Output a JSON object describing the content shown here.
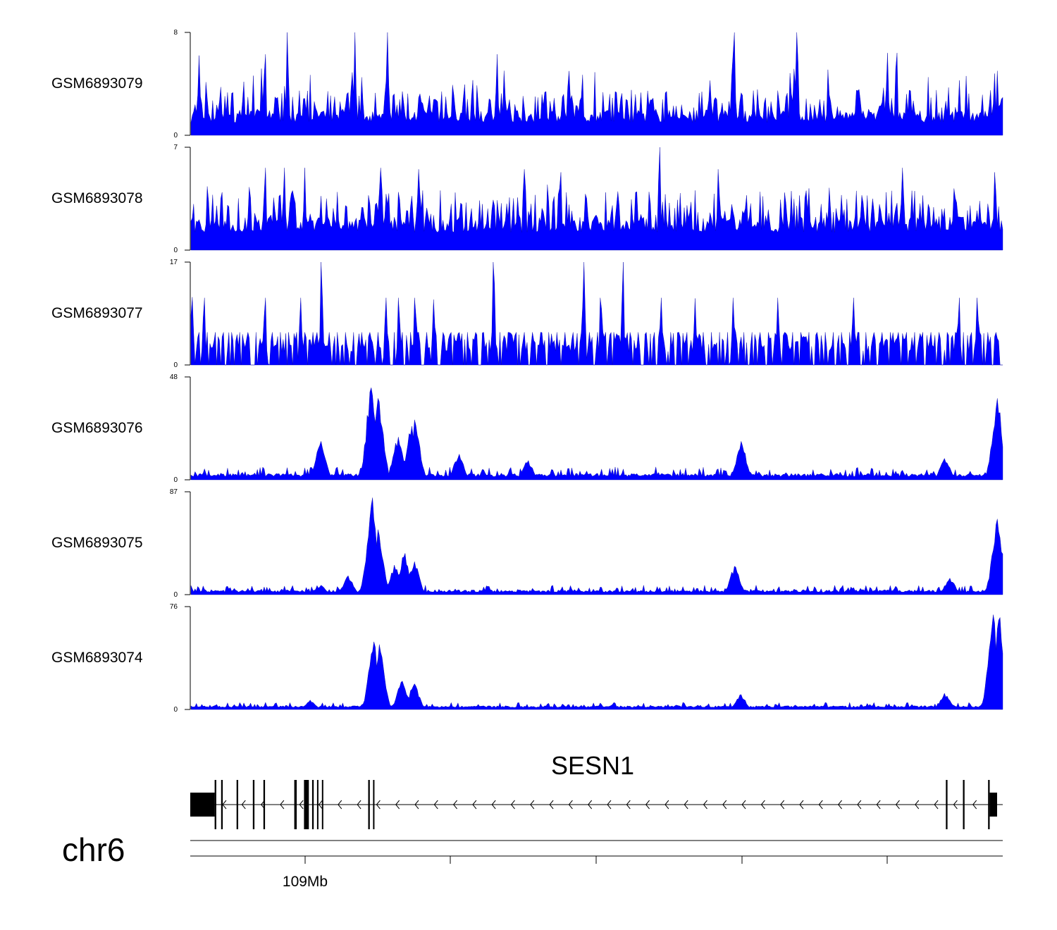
{
  "colors": {
    "signal": "#0000ff",
    "axis": "#000000",
    "background": "#ffffff"
  },
  "chart_data": {
    "type": "area",
    "title": "",
    "xlabel": "",
    "ylabel": "",
    "xlim": [
      108970000,
      109150000
    ],
    "tracks": [
      {
        "name": "GSM6893079",
        "ylim": [
          0,
          8
        ],
        "ymax_label": "8",
        "ymin_label": "0",
        "profile": "sparse",
        "baseline": 1,
        "noise": 1.6,
        "peaks": [
          [
            0.01,
            6.2
          ],
          [
            0.091,
            6.3
          ],
          [
            0.119,
            8.0
          ],
          [
            0.202,
            8.0
          ],
          [
            0.242,
            8.0
          ],
          [
            0.377,
            6.3
          ],
          [
            0.465,
            5.0
          ],
          [
            0.482,
            4.7
          ],
          [
            0.667,
            6.3
          ],
          [
            0.669,
            8.0
          ],
          [
            0.747,
            8.0
          ],
          [
            0.858,
            6.4
          ],
          [
            0.869,
            6.4
          ],
          [
            0.99,
            4.8
          ]
        ]
      },
      {
        "name": "GSM6893078",
        "ylim": [
          0,
          7
        ],
        "ymax_label": "7",
        "ymin_label": "0",
        "profile": "sparse",
        "baseline": 1.2,
        "noise": 1.8,
        "peaks": [
          [
            0.091,
            5.6
          ],
          [
            0.115,
            5.6
          ],
          [
            0.14,
            5.6
          ],
          [
            0.234,
            5.6
          ],
          [
            0.28,
            5.5
          ],
          [
            0.41,
            5.5
          ],
          [
            0.455,
            5.3
          ],
          [
            0.577,
            7.0
          ],
          [
            0.65,
            5.5
          ],
          [
            0.761,
            4.2
          ],
          [
            0.876,
            5.6
          ],
          [
            0.99,
            5.3
          ]
        ]
      },
      {
        "name": "GSM6893077",
        "ylim": [
          0,
          17
        ],
        "ymax_label": "17",
        "ymin_label": "0",
        "profile": "spiky",
        "baseline": 5.4,
        "noise": 0,
        "peaks": [
          [
            0.001,
            11.2
          ],
          [
            0.016,
            11.1
          ],
          [
            0.091,
            11.1
          ],
          [
            0.135,
            11.1
          ],
          [
            0.161,
            17.0
          ],
          [
            0.24,
            11.1
          ],
          [
            0.256,
            11.1
          ],
          [
            0.276,
            11.1
          ],
          [
            0.299,
            10.8
          ],
          [
            0.373,
            17.0
          ],
          [
            0.484,
            17.0
          ],
          [
            0.505,
            11.1
          ],
          [
            0.532,
            17.0
          ],
          [
            0.579,
            11.1
          ],
          [
            0.621,
            11.0
          ],
          [
            0.668,
            11.1
          ],
          [
            0.723,
            11.1
          ],
          [
            0.816,
            11.1
          ],
          [
            0.946,
            11.1
          ],
          [
            0.969,
            11.1
          ]
        ]
      },
      {
        "name": "GSM6893076",
        "ylim": [
          0,
          48
        ],
        "ymax_label": "48",
        "ymin_label": "0",
        "profile": "dense",
        "baseline": 1.5,
        "noise": 3,
        "peaks": [
          [
            0.16,
            18
          ],
          [
            0.222,
            43
          ],
          [
            0.231,
            38
          ],
          [
            0.255,
            20
          ],
          [
            0.272,
            25
          ],
          [
            0.276,
            28
          ],
          [
            0.33,
            12
          ],
          [
            0.415,
            9
          ],
          [
            0.678,
            18
          ],
          [
            0.929,
            10
          ],
          [
            0.993,
            38
          ]
        ]
      },
      {
        "name": "GSM6893075",
        "ylim": [
          0,
          87
        ],
        "ymax_label": "87",
        "ymin_label": "0",
        "profile": "dense",
        "baseline": 2,
        "noise": 4,
        "peaks": [
          [
            0.16,
            8
          ],
          [
            0.194,
            16
          ],
          [
            0.223,
            82
          ],
          [
            0.231,
            55
          ],
          [
            0.251,
            25
          ],
          [
            0.263,
            35
          ],
          [
            0.275,
            28
          ],
          [
            0.67,
            24
          ],
          [
            0.935,
            14
          ],
          [
            0.993,
            64
          ],
          [
            0.997,
            48
          ]
        ]
      },
      {
        "name": "GSM6893074",
        "ylim": [
          0,
          76
        ],
        "ymax_label": "76",
        "ymin_label": "0",
        "profile": "dense",
        "baseline": 1.5,
        "noise": 2.5,
        "peaks": [
          [
            0.147,
            7
          ],
          [
            0.225,
            50
          ],
          [
            0.232,
            48
          ],
          [
            0.26,
            21
          ],
          [
            0.275,
            19
          ],
          [
            0.677,
            11
          ],
          [
            0.929,
            12
          ],
          [
            0.988,
            70
          ],
          [
            0.996,
            68
          ]
        ]
      }
    ],
    "gene": {
      "name": "SESN1",
      "strand": "-",
      "exons": [
        [
          0.0,
          0.03,
          "thick"
        ],
        [
          0.03,
          0.032,
          "tall"
        ],
        [
          0.038,
          0.04,
          "tall"
        ],
        [
          0.057,
          0.059,
          "tall"
        ],
        [
          0.077,
          0.079,
          "tall"
        ],
        [
          0.09,
          0.092,
          "tall"
        ],
        [
          0.128,
          0.131,
          "tall"
        ],
        [
          0.14,
          0.146,
          "tall"
        ],
        [
          0.15,
          0.152,
          "tall"
        ],
        [
          0.156,
          0.157,
          "tall"
        ],
        [
          0.162,
          0.163,
          "tall"
        ],
        [
          0.219,
          0.221,
          "tall"
        ],
        [
          0.225,
          0.226,
          "tall"
        ],
        [
          0.93,
          0.932,
          "tall"
        ],
        [
          0.951,
          0.953,
          "tall"
        ],
        [
          0.982,
          0.984,
          "tall"
        ],
        [
          0.984,
          0.993,
          "thick"
        ]
      ]
    },
    "axis": {
      "chromosome": "chr6",
      "tick_label": "109Mb",
      "ticks": [
        109000000,
        109040000,
        109080000,
        109120000,
        109160000
      ]
    }
  }
}
